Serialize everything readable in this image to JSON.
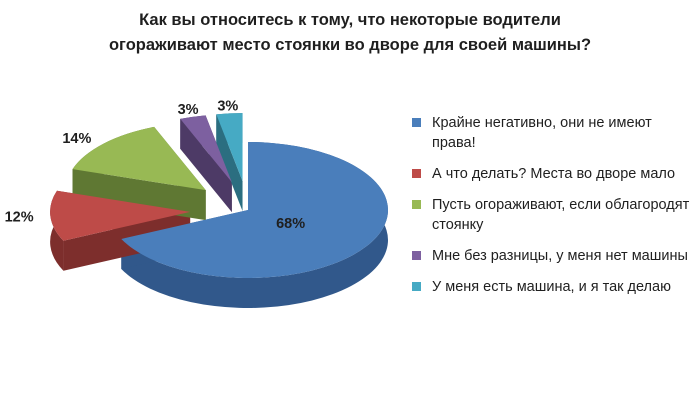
{
  "chart_data": {
    "type": "pie",
    "title": "Как вы относитесь к тому, что некоторые водители\nогораживают место стоянки во дворе для своей машины?",
    "slices": [
      {
        "label": "Крайне негативно, они не имеют права!",
        "value": 68,
        "value_label": "68%",
        "color": "#4a7ebb",
        "side": "#31588b",
        "exploded": false
      },
      {
        "label": "А что делать? Места во дворе мало",
        "value": 12,
        "value_label": "12%",
        "color": "#be4b48",
        "side": "#7d2e2c",
        "exploded": true
      },
      {
        "label": "Пусть огораживают, если облагородят стоянку",
        "value": 14,
        "value_label": "14%",
        "color": "#98b954",
        "side": "#5f7833",
        "exploded": true
      },
      {
        "label": "Мне без разницы, у меня нет машины",
        "value": 3,
        "value_label": "3%",
        "color": "#7d60a0",
        "side": "#4d3a66",
        "exploded": true
      },
      {
        "label": "У меня есть машина, и я так делаю",
        "value": 3,
        "value_label": "3%",
        "color": "#46aac4",
        "side": "#2b6e80",
        "exploded": true
      }
    ],
    "legend_position": "right",
    "style": "3d-exploded-pie"
  }
}
